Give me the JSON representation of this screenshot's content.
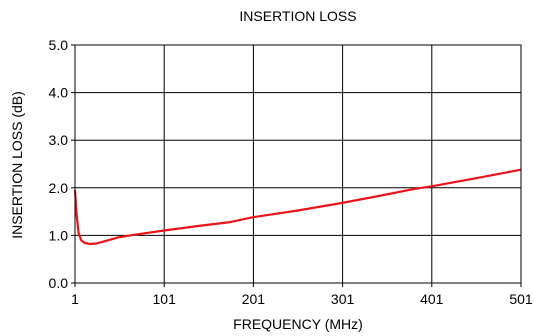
{
  "chart_data": {
    "type": "line",
    "title": "INSERTION LOSS",
    "xlabel": "FREQUENCY (MHz)",
    "ylabel": "INSERTION LOSS (dB)",
    "xlim": [
      1,
      501
    ],
    "ylim": [
      0,
      5
    ],
    "xticks": [
      1,
      101,
      201,
      301,
      401,
      501
    ],
    "yticks": [
      0,
      1,
      2,
      3,
      4,
      5
    ],
    "xtick_labels": [
      "1",
      "101",
      "201",
      "301",
      "401",
      "501"
    ],
    "ytick_labels": [
      "0.0",
      "1.0",
      "2.0",
      "3.0",
      "4.0",
      "5.0"
    ],
    "grid": true,
    "series": [
      {
        "color": "#e8141b",
        "x": [
          1,
          3,
          5,
          8,
          12,
          18,
          25,
          35,
          50,
          70,
          100,
          140,
          175,
          200,
          250,
          300,
          350,
          380,
          400,
          450,
          501
        ],
        "y": [
          1.95,
          1.4,
          1.05,
          0.9,
          0.84,
          0.82,
          0.83,
          0.88,
          0.96,
          1.02,
          1.1,
          1.2,
          1.28,
          1.38,
          1.52,
          1.68,
          1.86,
          1.97,
          2.03,
          2.2,
          2.38
        ]
      }
    ]
  }
}
